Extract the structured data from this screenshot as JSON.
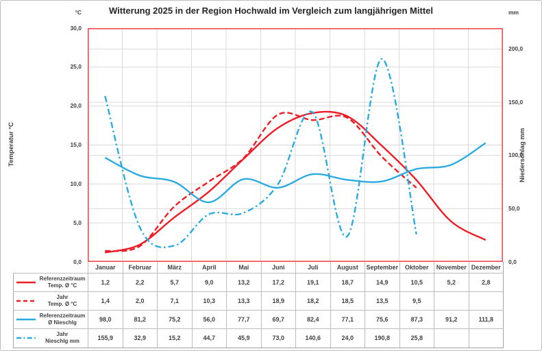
{
  "chart_data": {
    "type": "line",
    "title": "Witterung 2025 in der Region Hochwald im Vergleich zum langjährigen Mittel",
    "categories": [
      "Januar",
      "Februar",
      "März",
      "April",
      "Mai",
      "Juni",
      "Juli",
      "August",
      "September",
      "Oktober",
      "November",
      "Dezember"
    ],
    "series": [
      {
        "name": "Referenzzeitraum Temp. Ø °C",
        "axis": "left",
        "color": "#ee1c25",
        "dash": "solid",
        "values": [
          1.2,
          2.2,
          5.7,
          9.0,
          13.2,
          17.2,
          19.1,
          18.7,
          14.9,
          10.5,
          5.2,
          2.8
        ]
      },
      {
        "name": "Jahr Temp. Ø °C",
        "axis": "left",
        "color": "#ee1c25",
        "dash": "dash",
        "values": [
          1.4,
          2.0,
          7.1,
          10.3,
          13.3,
          18.9,
          18.2,
          18.5,
          13.5,
          9.5
        ]
      },
      {
        "name": "Referenzzeitraum Ø Nieschlg",
        "axis": "right",
        "color": "#29abe2",
        "dash": "solid",
        "values": [
          98.0,
          81.2,
          75.2,
          56.0,
          77.7,
          69.7,
          82.4,
          77.1,
          75.6,
          87.3,
          91.2,
          111.8
        ]
      },
      {
        "name": "Jahr Nieschlg mm",
        "axis": "right",
        "color": "#29abe2",
        "dash": "dashdot",
        "values": [
          155.9,
          32.9,
          15.2,
          44.7,
          45.9,
          73.0,
          140.6,
          24.0,
          190.8,
          25.8
        ]
      }
    ],
    "axis_left": {
      "unit": "°C",
      "label": "Temperatur °C",
      "ticks": [
        30,
        25,
        20,
        15,
        10,
        5,
        0
      ],
      "lim": [
        0,
        30
      ],
      "tick_format": "0,0"
    },
    "axis_right": {
      "unit": "mm",
      "label": "Niederschlag mm",
      "ticks": [
        200,
        150,
        100,
        50,
        0
      ],
      "lim": [
        0,
        219.7
      ],
      "tick_format": "0,0"
    },
    "grid": true,
    "smoothed": true,
    "legend_position": "table-left"
  },
  "legend": [
    {
      "line1": "Referenzzeitraum",
      "line2": "Temp. Ø °C",
      "color": "#ee1c25",
      "dash": "solid"
    },
    {
      "line1": "Jahr",
      "line2": "Temp. Ø °C",
      "color": "#ee1c25",
      "dash": "dash"
    },
    {
      "line1": "Referenzzeitraum",
      "line2": "Ø Nieschlg",
      "color": "#29abe2",
      "dash": "solid"
    },
    {
      "line1": "Jahr",
      "line2": "Nieschlg mm",
      "color": "#29abe2",
      "dash": "dashdot"
    }
  ],
  "colors": {
    "series_red": "#ee1c25",
    "series_blue": "#29abe2",
    "plot_border": "#ef4a4f",
    "gridline": "#d9d9d9",
    "table_border": "#bcbcbc",
    "text": "#404040"
  }
}
